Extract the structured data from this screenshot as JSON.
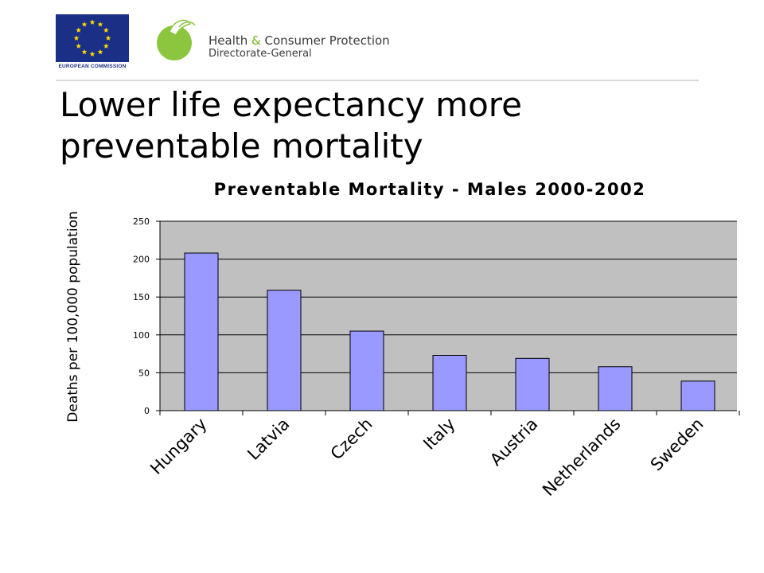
{
  "header": {
    "eu_caption": "EUROPEAN COMMISSION",
    "dg_line1_a": "Health",
    "dg_line1_amp": "&",
    "dg_line1_b": "Consumer Protection",
    "dg_line2": "Directorate-General"
  },
  "slide": {
    "title": "Lower life expectancy more preventable mortality"
  },
  "colors": {
    "bar_fill": "#9999ff",
    "plot_background": "#c0c0c0",
    "eu_blue": "#1c2f86",
    "eu_star": "#ffdd00",
    "dg_green": "#8cc63f"
  },
  "chart_data": {
    "type": "bar",
    "title": "Preventable Mortality - Males 2000-2002",
    "xlabel": "",
    "ylabel": "Deaths per 100,000 population",
    "categories": [
      "Hungary",
      "Latvia",
      "Czech",
      "Italy",
      "Austria",
      "Netherlands",
      "Sweden"
    ],
    "values": [
      208,
      159,
      105,
      73,
      69,
      58,
      39
    ],
    "ylim": [
      0,
      250
    ],
    "yticks": [
      "0",
      "50",
      "100",
      "150",
      "200",
      "250"
    ],
    "grid": true,
    "legend": "none"
  }
}
